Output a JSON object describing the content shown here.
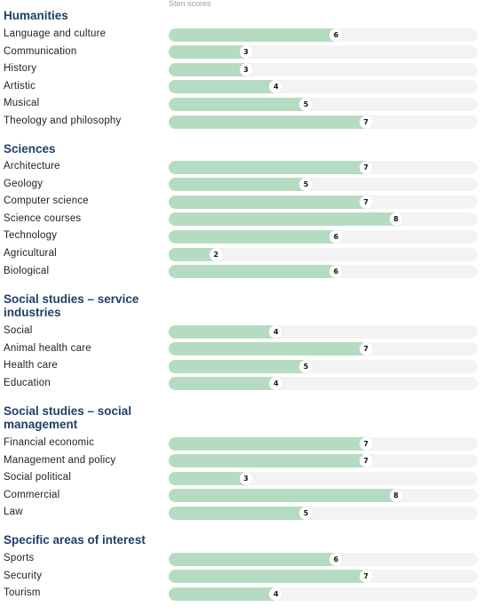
{
  "axis_note": "Sten scores",
  "colors": {
    "section_title": "#1f3f68",
    "bar_fill": "#b5dcc2",
    "bar_track": "#f3f3f3"
  },
  "chart_data": {
    "type": "bar",
    "orientation": "horizontal",
    "xlabel": "Sten scores",
    "xlim": [
      1,
      10
    ],
    "grid": false,
    "groups": [
      {
        "title": "Humanities",
        "categories": [
          "Language and culture",
          "Communication",
          "History",
          "Artistic",
          "Musical",
          "Theology and philosophy"
        ],
        "values": [
          6,
          3,
          3,
          4,
          5,
          7
        ]
      },
      {
        "title": "Sciences",
        "categories": [
          "Architecture",
          "Geology",
          "Computer science",
          "Science courses",
          "Technology",
          "Agricultural",
          "Biological"
        ],
        "values": [
          7,
          5,
          7,
          8,
          6,
          2,
          6
        ]
      },
      {
        "title": "Social studies – service industries",
        "categories": [
          "Social",
          "Animal health care",
          "Health care",
          "Education"
        ],
        "values": [
          4,
          7,
          5,
          4
        ]
      },
      {
        "title": "Social studies – social management",
        "categories": [
          "Financial economic",
          "Management and policy",
          "Social political",
          "Commercial",
          "Law"
        ],
        "values": [
          7,
          7,
          3,
          8,
          5
        ]
      },
      {
        "title": "Specific areas of interest",
        "categories": [
          "Sports",
          "Security",
          "Tourism"
        ],
        "values": [
          6,
          7,
          4
        ]
      }
    ]
  }
}
